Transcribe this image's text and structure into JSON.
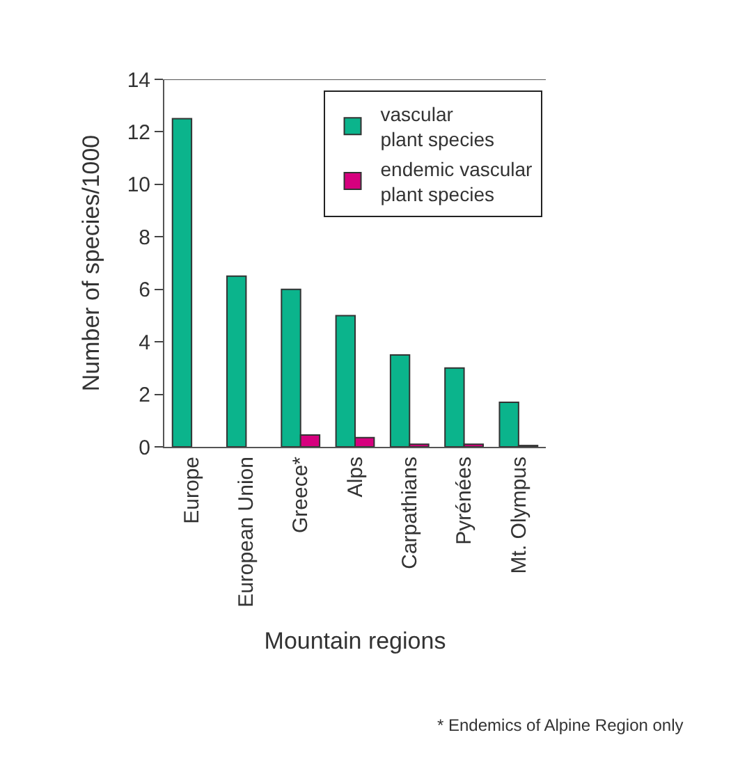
{
  "chart_data": {
    "type": "bar",
    "ylabel": "Number of species/1000",
    "xlabel": "Mountain regions",
    "categories": [
      "Europe",
      "European Union",
      "Greece*",
      "Alps",
      "Carpathians",
      "Pyrénées",
      "Mt. Olympus"
    ],
    "series": [
      {
        "name": "vascular\nplant species",
        "color": "#0bb48c",
        "values": [
          12.5,
          6.5,
          6.0,
          5.0,
          3.5,
          3.0,
          1.7
        ]
      },
      {
        "name": "endemic vascular\nplant species",
        "color": "#d6007e",
        "values": [
          null,
          null,
          0.45,
          0.35,
          0.1,
          0.1,
          0.05
        ]
      }
    ],
    "ylim": [
      0,
      14
    ],
    "yticks": [
      0,
      2,
      4,
      6,
      8,
      10,
      12,
      14
    ],
    "legend": "top right",
    "annotations": [
      "* Endemics of Alpine Region only"
    ]
  }
}
